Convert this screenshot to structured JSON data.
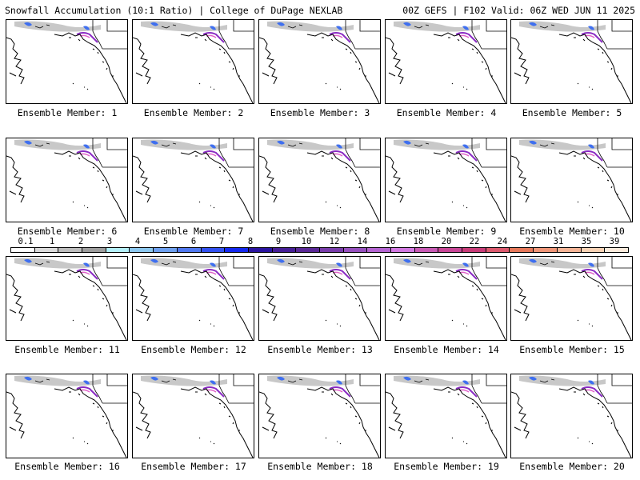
{
  "header": {
    "title_left": "Snowfall Accumulation (10:1 Ratio) | College of DuPage NEXLAB",
    "title_right": "00Z GEFS | F102 Valid: 06Z WED JUN 11 2025"
  },
  "panel_label_prefix": "Ensemble Member: ",
  "members": [
    {
      "member": "1"
    },
    {
      "member": "2"
    },
    {
      "member": "3"
    },
    {
      "member": "4"
    },
    {
      "member": "5"
    },
    {
      "member": "6"
    },
    {
      "member": "7"
    },
    {
      "member": "8"
    },
    {
      "member": "9"
    },
    {
      "member": "10"
    },
    {
      "member": "11"
    },
    {
      "member": "12"
    },
    {
      "member": "13"
    },
    {
      "member": "14"
    },
    {
      "member": "15"
    },
    {
      "member": "16"
    },
    {
      "member": "17"
    },
    {
      "member": "18"
    },
    {
      "member": "19"
    },
    {
      "member": "20"
    }
  ],
  "colorbar": {
    "labels": [
      "0.1",
      "1",
      "2",
      "3",
      "4",
      "5",
      "6",
      "7",
      "8",
      "9",
      "10",
      "12",
      "14",
      "16",
      "18",
      "20",
      "22",
      "24",
      "27",
      "31",
      "35",
      "39"
    ],
    "colors": [
      "#ffffff",
      "#dcdcdc",
      "#bebebe",
      "#9e9e9e",
      "#b4f0fa",
      "#8cc8f0",
      "#6ea0f0",
      "#5078f0",
      "#3250f0",
      "#1428f0",
      "#2a14a0",
      "#461e96",
      "#5a2896",
      "#783caa",
      "#9650be",
      "#b464d2",
      "#d278e1",
      "#c85ab4",
      "#c84696",
      "#c83c78",
      "#dc5a6e",
      "#e6785a",
      "#f09678",
      "#f5b496",
      "#f8d2b4",
      "#fcebdc"
    ]
  }
}
